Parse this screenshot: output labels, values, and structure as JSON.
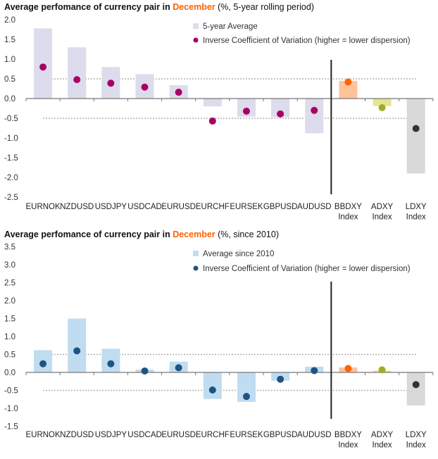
{
  "chart_data": [
    {
      "type": "bar",
      "title": {
        "prefix": "Average perfomance of currency pair in ",
        "highlight": "December",
        "suffix": " (%, 5-year rolling period)"
      },
      "xlabel": "",
      "ylabel": "",
      "ylim": [
        -2.5,
        2.0
      ],
      "yticks": [
        "2.0",
        "1.5",
        "1.0",
        "0.5",
        "0.0",
        "-0.5",
        "-1.0",
        "-1.5",
        "-2.0",
        "-2.5"
      ],
      "ytick_values": [
        2.0,
        1.5,
        1.0,
        0.5,
        0.0,
        -0.5,
        -1.0,
        -1.5,
        -2.0,
        -2.5
      ],
      "reference_lines": [
        0.5,
        -0.5
      ],
      "divider_after_index": 8,
      "legend_position": "top-right",
      "categories": [
        [
          "EURNOK"
        ],
        [
          "NZDUSD"
        ],
        [
          "USDJPY"
        ],
        [
          "USDCAD"
        ],
        [
          "EURUSD"
        ],
        [
          "EURCHF"
        ],
        [
          "EURSEK"
        ],
        [
          "GBPUSD"
        ],
        [
          "AUDUSD"
        ],
        [
          "BBDXY",
          "Index"
        ],
        [
          "ADXY",
          "Index"
        ],
        [
          "LDXY",
          "Index"
        ]
      ],
      "series": [
        {
          "name": "5-year Average",
          "kind": "bar",
          "values": [
            1.78,
            1.3,
            0.8,
            0.62,
            0.34,
            -0.2,
            -0.46,
            -0.47,
            -0.88,
            0.45,
            -0.19,
            -1.9
          ]
        },
        {
          "name": "Inverse Coefficient of Variation (higher = lower dispersion)",
          "kind": "dot",
          "values": [
            0.8,
            0.48,
            0.39,
            0.29,
            0.16,
            -0.57,
            -0.32,
            -0.39,
            -0.3,
            0.42,
            -0.23,
            -0.76
          ]
        }
      ],
      "colors": {
        "bar": [
          "#dcdcec",
          "#dcdcec",
          "#dcdcec",
          "#dcdcec",
          "#dcdcec",
          "#dcdcec",
          "#dcdcec",
          "#dcdcec",
          "#dcdcec",
          "#ffc29b",
          "#e3e68f",
          "#d9d9d9"
        ],
        "dot": [
          "#aa0066",
          "#aa0066",
          "#aa0066",
          "#aa0066",
          "#aa0066",
          "#aa0066",
          "#aa0066",
          "#aa0066",
          "#aa0066",
          "#ff6200",
          "#a2ab28",
          "#333333"
        ],
        "legend_bar": "#dcdcec",
        "legend_dot": "#aa0066"
      }
    },
    {
      "type": "bar",
      "title": {
        "prefix": "Average perfomance of currency pair in ",
        "highlight": "December",
        "suffix": " (%, since 2010)"
      },
      "xlabel": "",
      "ylabel": "",
      "ylim": [
        -1.5,
        3.5
      ],
      "yticks": [
        "3.5",
        "3.0",
        "2.5",
        "2.0",
        "1.5",
        "1.0",
        "0.5",
        "0.0",
        "-0.5",
        "-1.0",
        "-1.5"
      ],
      "ytick_values": [
        3.5,
        3.0,
        2.5,
        2.0,
        1.5,
        1.0,
        0.5,
        0.0,
        -0.5,
        -1.0,
        -1.5
      ],
      "reference_lines": [
        0.5,
        -0.5
      ],
      "divider_after_index": 8,
      "legend_position": "top-right",
      "categories": [
        [
          "EURNOK"
        ],
        [
          "NZDUSD"
        ],
        [
          "USDJPY"
        ],
        [
          "USDCAD"
        ],
        [
          "EURUSD"
        ],
        [
          "EURCHF"
        ],
        [
          "EURSEK"
        ],
        [
          "GBPUSD"
        ],
        [
          "AUDUSD"
        ],
        [
          "BBDXY",
          "Index"
        ],
        [
          "ADXY",
          "Index"
        ],
        [
          "LDXY",
          "Index"
        ]
      ],
      "series": [
        {
          "name": "Average since 2010",
          "kind": "bar",
          "values": [
            0.62,
            1.5,
            0.66,
            0.08,
            0.3,
            -0.74,
            -0.82,
            -0.23,
            0.16,
            0.14,
            0.05,
            -0.92
          ]
        },
        {
          "name": "Inverse Coefficient of Variation (higher = lower dispersion)",
          "kind": "dot",
          "values": [
            0.24,
            0.6,
            0.24,
            0.04,
            0.13,
            -0.49,
            -0.67,
            -0.19,
            0.05,
            0.11,
            0.07,
            -0.34
          ]
        }
      ],
      "colors": {
        "bar": [
          "#c0dcf0",
          "#c0dcf0",
          "#c0dcf0",
          "#c0dcf0",
          "#c0dcf0",
          "#c0dcf0",
          "#c0dcf0",
          "#c0dcf0",
          "#c0dcf0",
          "#ffc29b",
          "#e3e68f",
          "#d9d9d9"
        ],
        "dot": [
          "#1e5482",
          "#1e5482",
          "#1e5482",
          "#1e5482",
          "#1e5482",
          "#1e5482",
          "#1e5482",
          "#1e5482",
          "#1e5482",
          "#ff6200",
          "#a2ab28",
          "#333333"
        ],
        "legend_bar": "#c0dcf0",
        "legend_dot": "#1e5482"
      }
    }
  ]
}
